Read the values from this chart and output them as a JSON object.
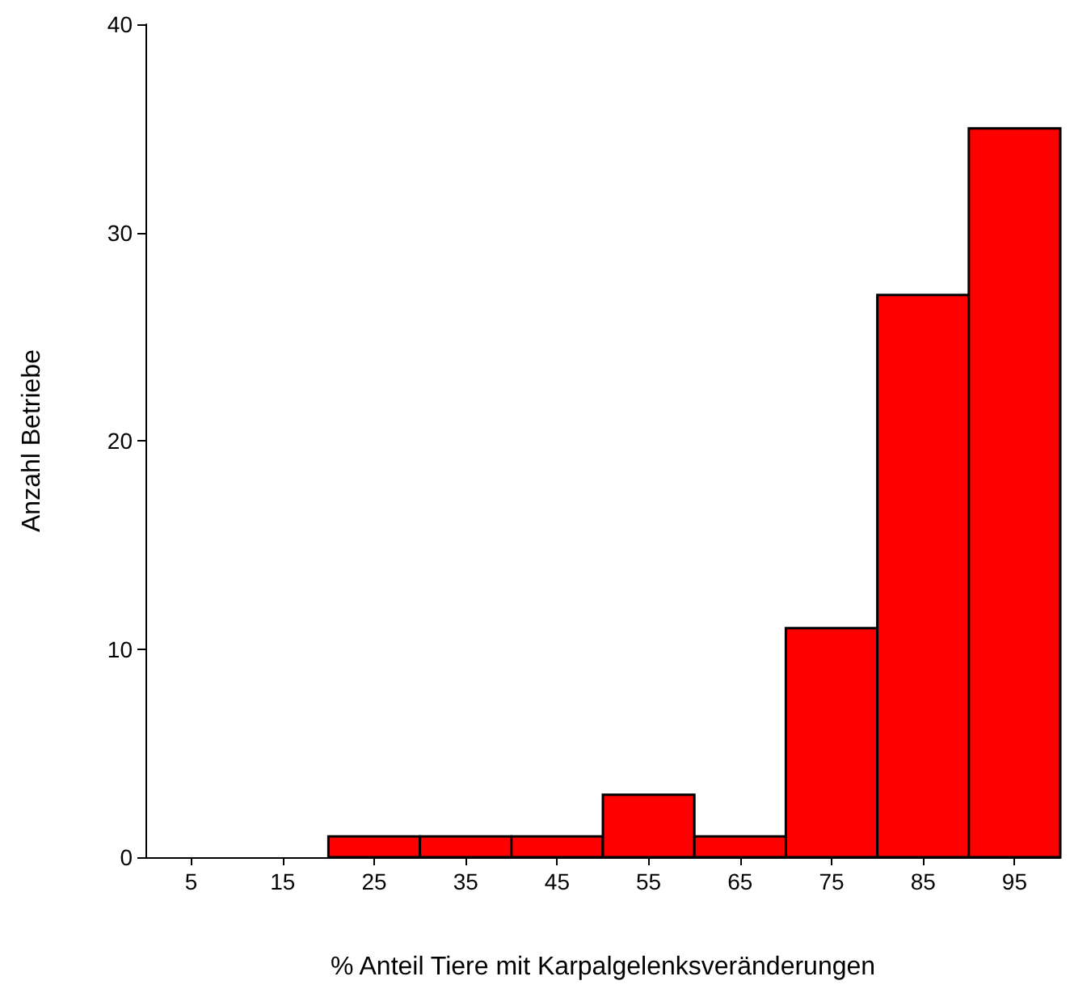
{
  "chart_data": {
    "type": "histogram",
    "xlabel": "% Anteil Tiere mit Karpalgelenksveränderungen",
    "ylabel": "Anzahl Betriebe",
    "bins": [
      0,
      10,
      20,
      30,
      40,
      50,
      60,
      70,
      80,
      90,
      100
    ],
    "values": [
      0,
      0,
      1,
      1,
      1,
      3,
      1,
      11,
      27,
      35
    ],
    "color": "#ff0000",
    "xlim": [
      0,
      100
    ],
    "xticks": [
      5,
      15,
      25,
      35,
      45,
      55,
      65,
      75,
      85,
      95
    ],
    "ylim": [
      0,
      40
    ],
    "yticks": [
      0,
      10,
      20,
      30,
      40
    ],
    "grid": false
  }
}
